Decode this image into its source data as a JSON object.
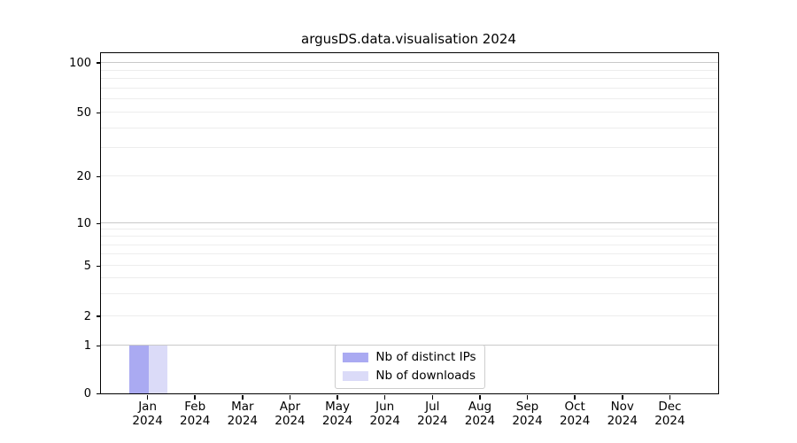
{
  "title": "argusDS.data.visualisation 2024",
  "legend": {
    "items": [
      {
        "label": "Nb of distinct IPs",
        "color": "#aaaaf2"
      },
      {
        "label": "Nb of downloads",
        "color": "#dbdbf8"
      }
    ]
  },
  "axes": {
    "y_tick_labels": [
      "0",
      "1",
      "2",
      "5",
      "10",
      "20",
      "50",
      "100"
    ],
    "x_tick_line2": "2024"
  },
  "chart_data": {
    "type": "bar",
    "title": "argusDS.data.visualisation 2024",
    "categories": [
      "Jan 2024",
      "Feb 2024",
      "Mar 2024",
      "Apr 2024",
      "May 2024",
      "Jun 2024",
      "Jul 2024",
      "Aug 2024",
      "Sep 2024",
      "Oct 2024",
      "Nov 2024",
      "Dec 2024"
    ],
    "series": [
      {
        "name": "Nb of distinct IPs",
        "color": "#aaaaf2",
        "values": [
          1,
          0,
          0,
          0,
          0,
          0,
          0,
          0,
          0,
          0,
          0,
          0
        ]
      },
      {
        "name": "Nb of downloads",
        "color": "#dbdbf8",
        "values": [
          1,
          0,
          0,
          0,
          0,
          0,
          0,
          0,
          0,
          0,
          0,
          0
        ]
      }
    ],
    "xlabel": "",
    "ylabel": "",
    "yscale": "symlog",
    "y_ticks": [
      0,
      1,
      2,
      5,
      10,
      20,
      50,
      100
    ],
    "y_minor_gridlines": [
      3,
      4,
      6,
      7,
      8,
      9,
      30,
      40,
      60,
      70,
      80,
      90
    ],
    "y_major_gridlines": [
      1,
      10,
      100
    ],
    "ylim": [
      0,
      115
    ],
    "grid": true,
    "legend_position": "lower center"
  }
}
